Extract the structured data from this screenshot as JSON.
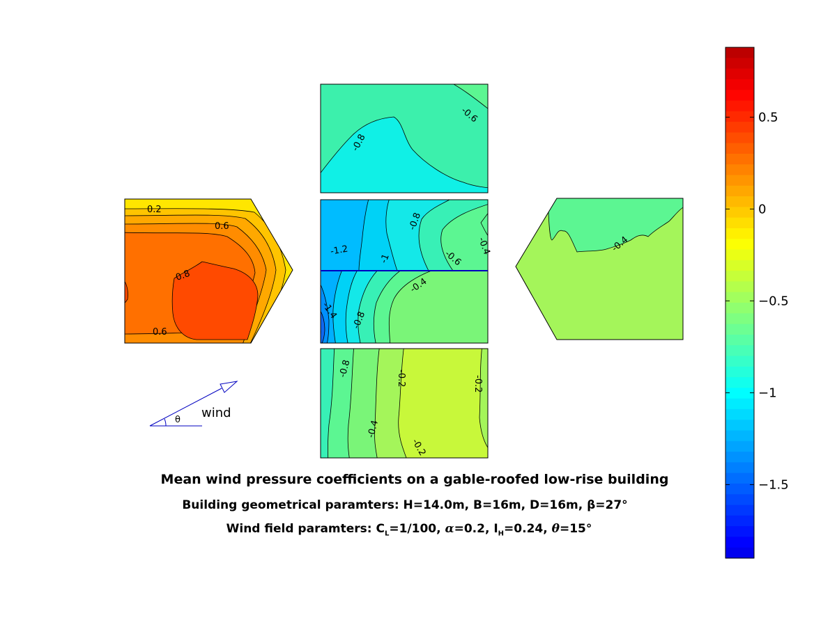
{
  "chart_data": {
    "type": "heatmap",
    "title": "Mean wind pressure coefficients on a gable-roofed low-rise building",
    "subtitle_geometry": "Building geometrical paramters: H=14.0m, B=16m, D=16m, β=27°",
    "subtitle_wind": {
      "prefix": "Wind field paramters: C",
      "cl_sub": "L",
      "cl_value": "=1/100,",
      "alpha_symbol": "α",
      "alpha_value": "=0.2, I",
      "ih_sub": "H",
      "ih_value": "=0.24,",
      "theta_symbol": "θ",
      "theta_value": "=15°"
    },
    "colorbar": {
      "min": -1.9,
      "max": 0.88,
      "ticks": [
        0.5,
        0,
        -0.5,
        -1,
        -1.5
      ],
      "tick_labels": [
        "0.5",
        "0",
        "−0.5",
        "−1",
        "−1.5"
      ],
      "colormap": "jet",
      "levels": 48
    },
    "faces": [
      {
        "name": "windward-gable-wall",
        "fill_value": 0.62,
        "contour_labels": [
          "0.2",
          "0.6",
          "0.8",
          "0.6"
        ]
      },
      {
        "name": "side-wall-top",
        "fill_value": -0.8,
        "contour_labels": [
          "-0.8",
          "-0.6"
        ]
      },
      {
        "name": "roof-windward-slope",
        "fill_value": -1.05,
        "contour_labels": [
          "-1.2",
          "-1",
          "-0.8",
          "-0.6",
          "-0.4"
        ]
      },
      {
        "name": "roof-leeward-slope",
        "fill_value": -0.5,
        "contour_labels": [
          "-1.4",
          "-0.8",
          "-0.4"
        ]
      },
      {
        "name": "side-wall-bottom",
        "fill_value": -0.25,
        "contour_labels": [
          "-0.8",
          "-0.2",
          "-0.2",
          "-0.4",
          "-0.2"
        ]
      },
      {
        "name": "leeward-gable-wall",
        "fill_value": -0.4,
        "contour_labels": [
          "-0.4"
        ]
      }
    ],
    "wind_indicator": {
      "label": "wind",
      "angle_symbol": "θ"
    }
  }
}
